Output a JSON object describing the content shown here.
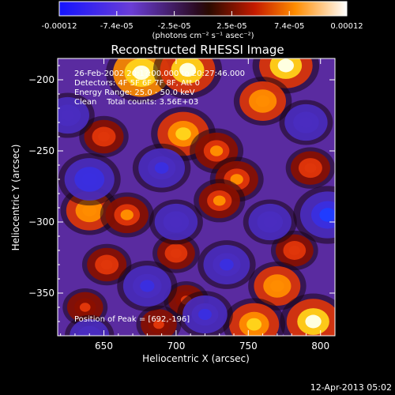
{
  "chart_data": {
    "type": "heatmap",
    "title": "Reconstructed RHESSI Image",
    "xlabel": "Heliocentric X (arcsec)",
    "ylabel": "Heliocentric Y (arcsec)",
    "xlim": [
      618,
      810
    ],
    "ylim": [
      -380,
      -185
    ],
    "xticks": [
      650,
      700,
      750,
      800
    ],
    "yticks": [
      -200,
      -250,
      -300,
      -350
    ],
    "colorbar": {
      "ticks": [
        "-0.00012",
        "-7.4e-05",
        "-2.5e-05",
        "2.5e-05",
        "7.4e-05",
        "0.00012"
      ],
      "unit_label": "(photons cm⁻² s⁻¹ asec⁻²)",
      "vmin": -0.00012,
      "vmax": 0.00012
    },
    "info_lines": [
      "26-Feb-2002 20:1?:00.000 to 20:27:46.000",
      "Detectors: 4F 5F 6F 7F 8F, Att 0",
      "Energy Range: 25.0 - 50.0 keV",
      "Clean    Total counts: 3.56E+03"
    ],
    "peak_text": "Position of Peak = [692,-196]",
    "timestamp": "12-Apr-2013 05:02",
    "sources": [
      {
        "x": 676,
        "y": -195,
        "v": 1.0
      },
      {
        "x": 708,
        "y": -193,
        "v": 0.95
      },
      {
        "x": 776,
        "y": -190,
        "v": 0.9
      },
      {
        "x": 760,
        "y": -215,
        "v": 0.7
      },
      {
        "x": 705,
        "y": -238,
        "v": 0.85
      },
      {
        "x": 728,
        "y": -250,
        "v": 0.6
      },
      {
        "x": 650,
        "y": -240,
        "v": 0.5
      },
      {
        "x": 742,
        "y": -270,
        "v": 0.6
      },
      {
        "x": 730,
        "y": -285,
        "v": 0.55
      },
      {
        "x": 640,
        "y": -292,
        "v": 0.7
      },
      {
        "x": 666,
        "y": -295,
        "v": 0.6
      },
      {
        "x": 652,
        "y": -330,
        "v": 0.5
      },
      {
        "x": 700,
        "y": -322,
        "v": 0.45
      },
      {
        "x": 793,
        "y": -262,
        "v": 0.5
      },
      {
        "x": 782,
        "y": -320,
        "v": 0.45
      },
      {
        "x": 770,
        "y": -345,
        "v": 0.7
      },
      {
        "x": 707,
        "y": -355,
        "v": 0.4
      },
      {
        "x": 637,
        "y": -360,
        "v": 0.4
      },
      {
        "x": 754,
        "y": -372,
        "v": 0.8
      },
      {
        "x": 795,
        "y": -370,
        "v": 0.9
      },
      {
        "x": 688,
        "y": -372,
        "v": 0.4
      },
      {
        "x": 640,
        "y": -270,
        "v": -0.8
      },
      {
        "x": 690,
        "y": -262,
        "v": -0.7
      },
      {
        "x": 625,
        "y": -225,
        "v": -0.6
      },
      {
        "x": 805,
        "y": -295,
        "v": -0.95
      },
      {
        "x": 700,
        "y": -300,
        "v": -0.6
      },
      {
        "x": 735,
        "y": -330,
        "v": -0.7
      },
      {
        "x": 680,
        "y": -345,
        "v": -0.75
      },
      {
        "x": 720,
        "y": -365,
        "v": -0.65
      },
      {
        "x": 790,
        "y": -230,
        "v": -0.6
      },
      {
        "x": 640,
        "y": -380,
        "v": -0.5
      },
      {
        "x": 765,
        "y": -300,
        "v": -0.6
      }
    ]
  }
}
